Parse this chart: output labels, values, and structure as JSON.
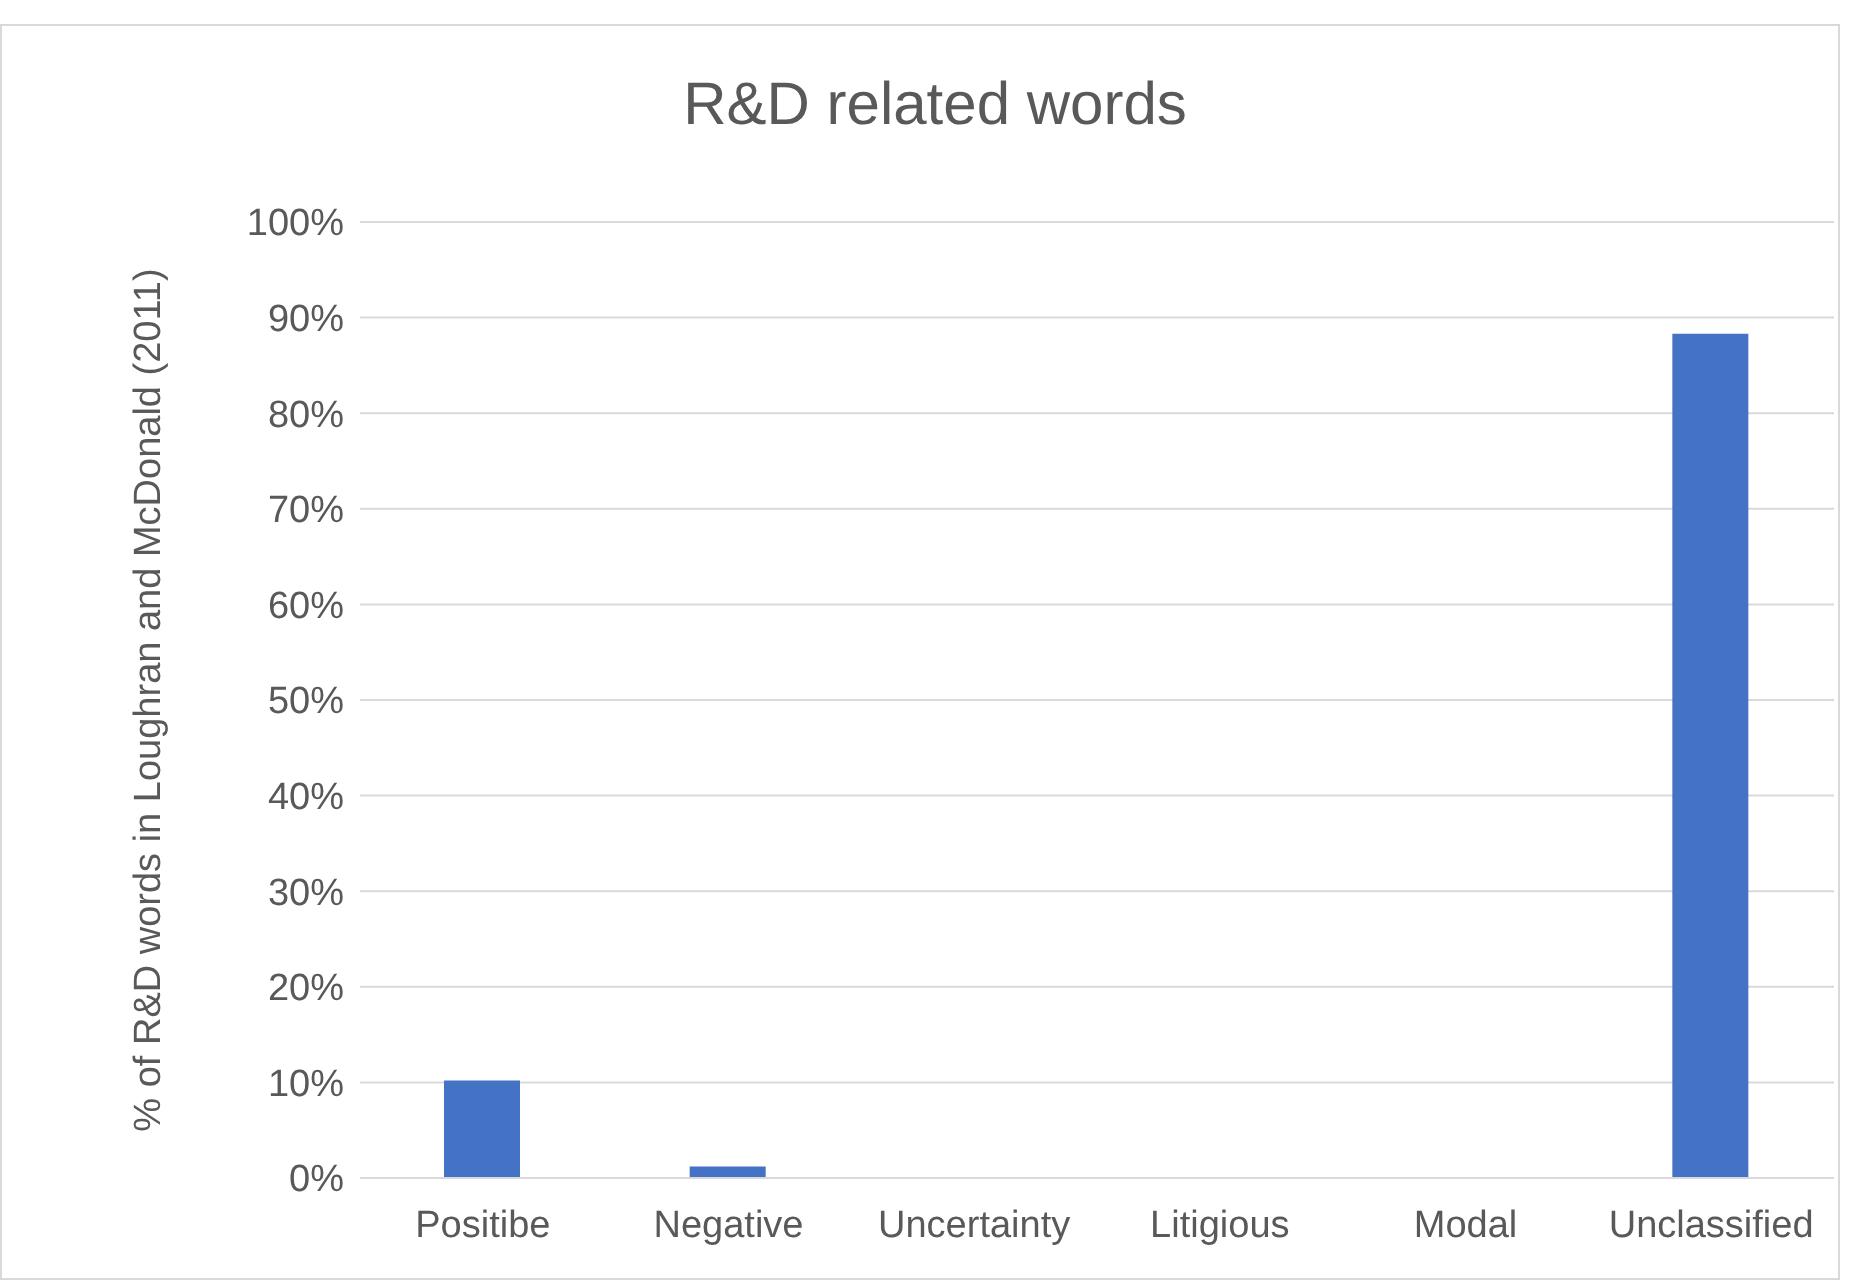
{
  "chart_data": {
    "type": "bar",
    "title": "R&D related words",
    "ylabel": "% of R&D words in Loughran and McDonald (2011)",
    "categories": [
      "Positibe",
      "Negative",
      "Uncertainty",
      "Litigious",
      "Modal",
      "Unclassified"
    ],
    "values": [
      10.2,
      1.2,
      0,
      0,
      0,
      88.3
    ],
    "color": "#4472c4",
    "ylim": [
      0,
      100
    ],
    "yticks": [
      {
        "value": 0,
        "label": "0%"
      },
      {
        "value": 10,
        "label": "10%"
      },
      {
        "value": 20,
        "label": "20%"
      },
      {
        "value": 30,
        "label": "30%"
      },
      {
        "value": 40,
        "label": "40%"
      },
      {
        "value": 50,
        "label": "50%"
      },
      {
        "value": 60,
        "label": "60%"
      },
      {
        "value": 70,
        "label": "70%"
      },
      {
        "value": 80,
        "label": "80%"
      },
      {
        "value": 90,
        "label": "90%"
      },
      {
        "value": 100,
        "label": "100%"
      }
    ],
    "grid": "y",
    "legend": false
  }
}
